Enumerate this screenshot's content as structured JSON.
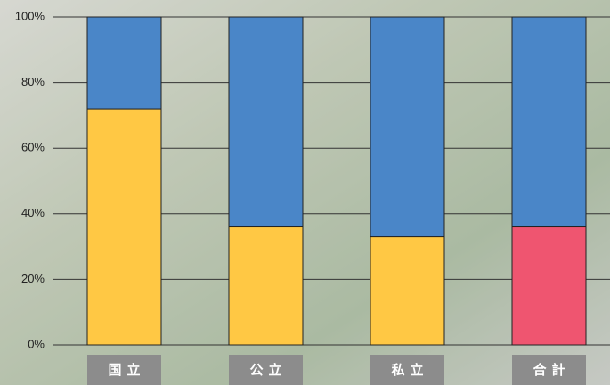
{
  "chart_data": {
    "type": "stacked-bar",
    "categories": [
      "国立",
      "公立",
      "私立",
      "合計"
    ],
    "series": [
      {
        "colors": [
          "#ffc844",
          "#ffc844",
          "#ffc844",
          "#ef5570"
        ],
        "values": [
          72,
          36,
          33,
          36
        ]
      },
      {
        "color": "#4a86c8",
        "values": [
          28,
          64,
          67,
          64
        ]
      }
    ],
    "ylim": [
      0,
      100
    ],
    "yticks": [
      {
        "value": 0,
        "label": "0%"
      },
      {
        "value": 20,
        "label": "20%"
      },
      {
        "value": 40,
        "label": "40%"
      },
      {
        "value": 60,
        "label": "60%"
      },
      {
        "value": 80,
        "label": "80%"
      },
      {
        "value": 100,
        "label": "100%"
      }
    ],
    "grid": true
  }
}
